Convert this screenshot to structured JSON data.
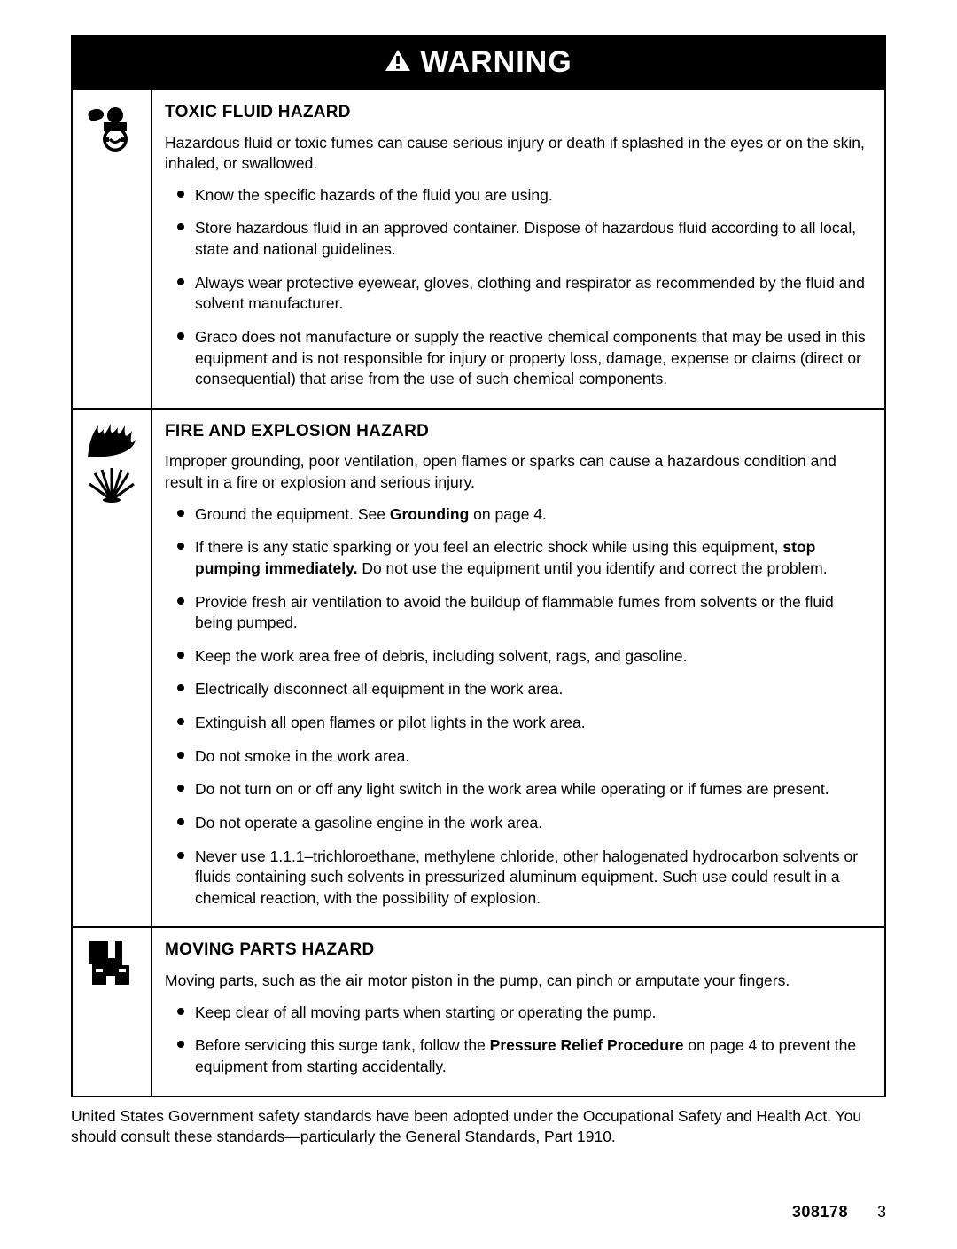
{
  "colors": {
    "header_bg": "#000000",
    "header_fg": "#ffffff",
    "border": "#000000",
    "text": "#000000",
    "page_bg": "#ffffff"
  },
  "typography": {
    "body_fontsize_pt": 13,
    "title_fontsize_pt": 14,
    "header_fontsize_pt": 26,
    "font_family": "Arial, Helvetica, sans-serif"
  },
  "header": {
    "title": "WARNING"
  },
  "sections": [
    {
      "icon": "toxic",
      "title": "TOXIC FLUID HAZARD",
      "intro": "Hazardous fluid or toxic fumes can cause serious injury or death if splashed in the eyes or on the skin, inhaled, or swallowed.",
      "bullets": [
        [
          {
            "t": "Know the specific hazards of the fluid you are using."
          }
        ],
        [
          {
            "t": "Store hazardous fluid in an approved container.  Dispose of hazardous fluid according to all local, state and national guidelines."
          }
        ],
        [
          {
            "t": "Always wear protective eyewear, gloves, clothing and respirator as recommended by the fluid and solvent manufacturer."
          }
        ],
        [
          {
            "t": "Graco does not manufacture or supply the reactive chemical components that may be used in this equipment and is not responsible for injury or property loss, damage, expense or claims (direct or consequential) that arise from the use of such chemical components."
          }
        ]
      ]
    },
    {
      "icon": "fire",
      "title": "FIRE AND EXPLOSION HAZARD",
      "intro": "Improper grounding, poor ventilation, open flames or sparks can cause a hazardous condition and result in a fire or explosion and serious injury.",
      "bullets": [
        [
          {
            "t": "Ground the equipment. See "
          },
          {
            "t": "Grounding",
            "b": true
          },
          {
            "t": " on page 4."
          }
        ],
        [
          {
            "t": "If there is any static sparking or you feel an electric shock while using this equipment, "
          },
          {
            "t": "stop pumping immediately.",
            "b": true
          },
          {
            "t": "  Do not use the equipment until you identify and correct the problem."
          }
        ],
        [
          {
            "t": "Provide fresh air ventilation to avoid the buildup of flammable fumes from solvents or the fluid being pumped."
          }
        ],
        [
          {
            "t": "Keep the work area free of debris, including solvent, rags, and gasoline."
          }
        ],
        [
          {
            "t": "Electrically disconnect all equipment in the work area."
          }
        ],
        [
          {
            "t": "Extinguish all open flames or pilot lights in the work area."
          }
        ],
        [
          {
            "t": "Do not smoke in the work area."
          }
        ],
        [
          {
            "t": "Do not turn on or off any light switch in the work area while operating or if fumes are present."
          }
        ],
        [
          {
            "t": "Do not operate a gasoline engine in the work area."
          }
        ],
        [
          {
            "t": "Never use 1.1.1–trichloroethane, methylene chloride, other halogenated hydrocarbon solvents or fluids containing such solvents in pressurized aluminum equipment. Such use could result in a chemical reaction, with the possibility of explosion."
          }
        ]
      ]
    },
    {
      "icon": "moving",
      "title": "MOVING PARTS HAZARD",
      "intro": "Moving parts, such as the air motor piston in the pump, can pinch or amputate your fingers.",
      "bullets": [
        [
          {
            "t": "Keep clear of all moving parts when starting or operating the pump."
          }
        ],
        [
          {
            "t": "Before servicing this surge tank, follow the "
          },
          {
            "t": "Pressure Relief Procedure",
            "b": true
          },
          {
            "t": " on page 4 to prevent the equipment from starting accidentally."
          }
        ]
      ]
    }
  ],
  "footnote": "United States Government safety standards have been adopted under the Occupational Safety and Health Act. You should consult these standards—particularly the General Standards, Part 1910.",
  "footer": {
    "doc_number": "308178",
    "page_number": "3"
  }
}
